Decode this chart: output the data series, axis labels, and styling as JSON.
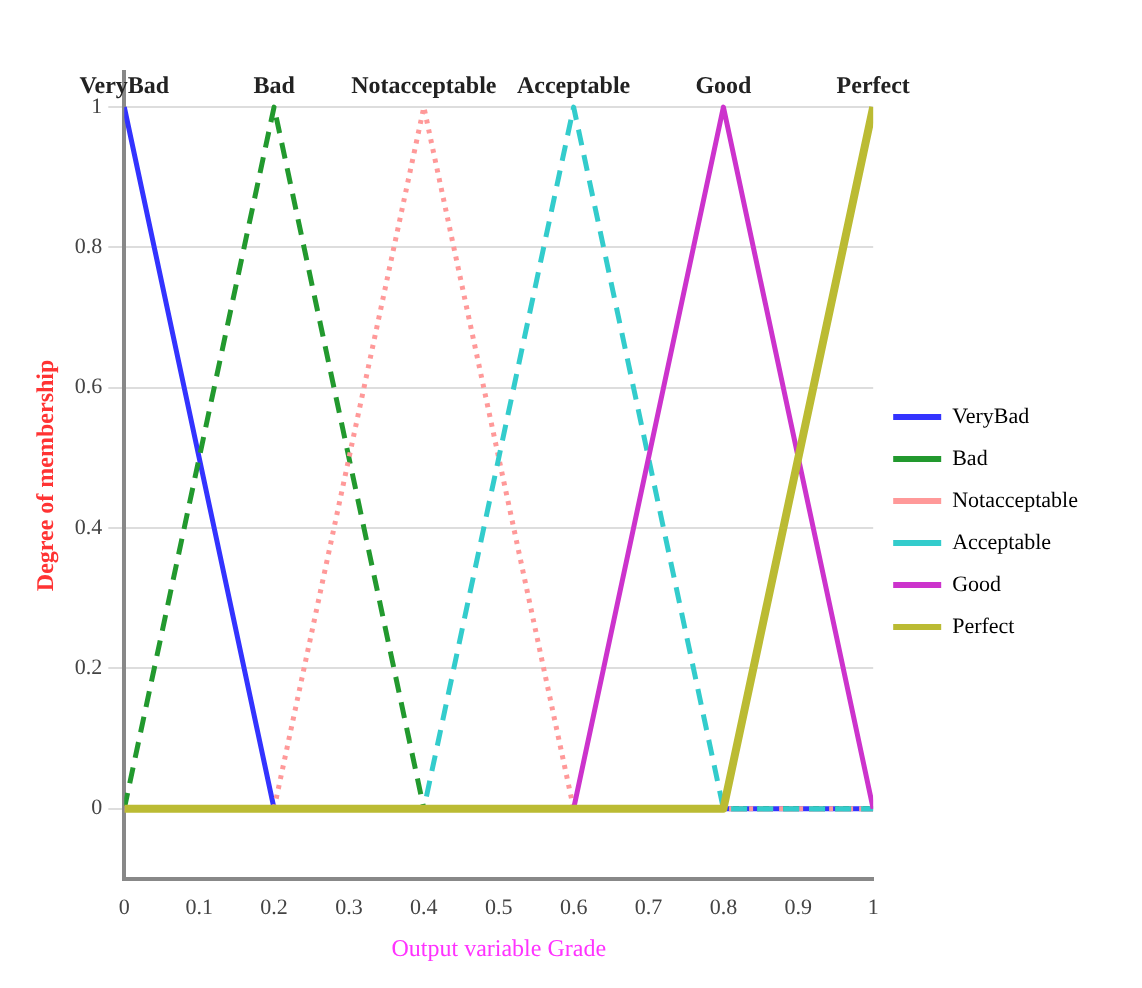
{
  "chart_data": {
    "type": "line",
    "xlabel": "Output variable Grade",
    "ylabel": "Degree of membership",
    "xlim": [
      0,
      1
    ],
    "xticks": [
      0,
      0.1,
      0.2,
      0.3,
      0.4,
      0.5,
      0.6,
      0.7,
      0.8,
      0.9,
      1
    ],
    "ylim": [
      -0.1,
      1.05
    ],
    "yticks": [
      0,
      0.2,
      0.4,
      0.6,
      0.8,
      1
    ],
    "grid": "y",
    "legend": "right",
    "marker": "none",
    "series": [
      {
        "name": "VeryBad",
        "color": "#3333ff",
        "line_style": "solid",
        "x": [
          0,
          0.2,
          1
        ],
        "values": [
          1,
          0,
          0
        ]
      },
      {
        "name": "Bad",
        "color": "#22992e",
        "line_style": "dashed",
        "x": [
          0,
          0.2,
          0.4,
          1
        ],
        "values": [
          0,
          1,
          0,
          0
        ]
      },
      {
        "name": "Notacceptable",
        "color": "#ff9999",
        "line_style": "dotted",
        "x": [
          0,
          0.2,
          0.4,
          0.6,
          1
        ],
        "values": [
          0,
          0,
          1,
          0,
          0
        ]
      },
      {
        "name": "Acceptable",
        "color": "#33cccc",
        "line_style": "dashed",
        "x": [
          0,
          0.4,
          0.6,
          0.8,
          1
        ],
        "values": [
          0,
          0,
          1,
          0,
          0
        ]
      },
      {
        "name": "Good",
        "color": "#cc33cc",
        "line_style": "solid",
        "x": [
          0,
          0.6,
          0.8,
          1
        ],
        "values": [
          0,
          0,
          1,
          0
        ]
      },
      {
        "name": "Perfect",
        "color": "#bbbb33",
        "line_style": "solid",
        "x": [
          0,
          0.8,
          1
        ],
        "values": [
          0,
          0,
          1
        ]
      }
    ],
    "annotations": [
      {
        "text": "VeryBad",
        "x": 0,
        "y": 1
      },
      {
        "text": "Bad",
        "x": 0.2,
        "y": 1
      },
      {
        "text": "Notacceptable",
        "x": 0.4,
        "y": 1
      },
      {
        "text": "Acceptable",
        "x": 0.6,
        "y": 1
      },
      {
        "text": "Good",
        "x": 0.8,
        "y": 1
      },
      {
        "text": "Perfect",
        "x": 1,
        "y": 1
      }
    ]
  }
}
